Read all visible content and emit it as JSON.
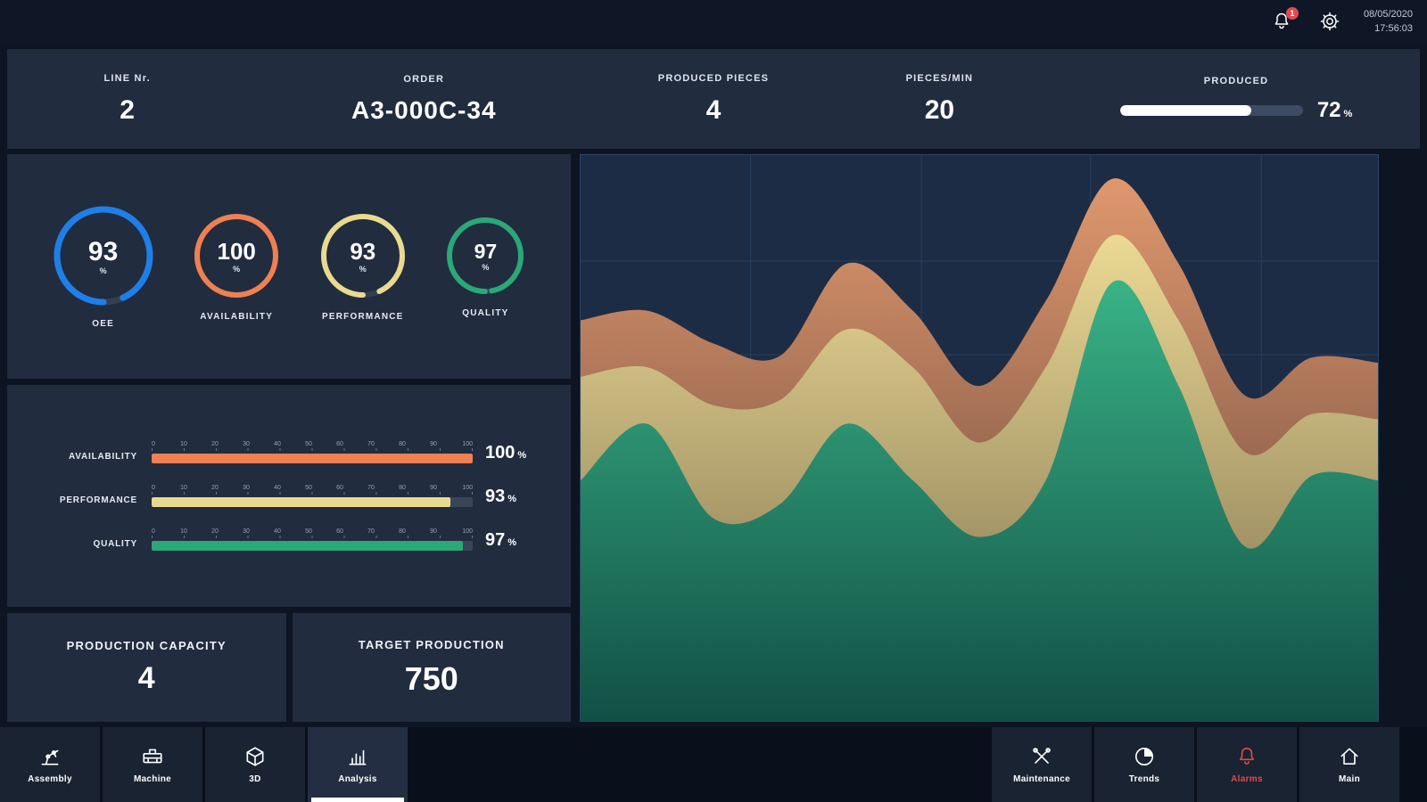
{
  "topbar": {
    "date": "08/05/2020",
    "time": "17:56:03",
    "notification_count": "1"
  },
  "header": {
    "line": {
      "label": "LINE Nr.",
      "value": "2"
    },
    "order": {
      "label": "ORDER",
      "value": "A3-000C-34"
    },
    "produced_pieces": {
      "label": "PRODUCED PIECES",
      "value": "4"
    },
    "pieces_min": {
      "label": "PIECES/MIN",
      "value": "20"
    },
    "produced": {
      "label": "PRODUCED",
      "value": "72",
      "unit": "%",
      "percent": 72,
      "bar_color": "#ffffff"
    }
  },
  "gauges": {
    "items": [
      {
        "label": "OEE",
        "value": 93,
        "unit": "%",
        "color": "#1f7fe8"
      },
      {
        "label": "AVAILABILITY",
        "value": 100,
        "unit": "%",
        "color": "#ee8052"
      },
      {
        "label": "PERFORMANCE",
        "value": 93,
        "unit": "%",
        "color": "#e9da8f"
      },
      {
        "label": "QUALITY",
        "value": 97,
        "unit": "%",
        "color": "#2aa876"
      }
    ]
  },
  "bars": {
    "scale": {
      "min": 0,
      "max": 100,
      "step": 10
    },
    "items": [
      {
        "label": "AVAILABILITY",
        "value": 100,
        "display": "100",
        "unit": "%",
        "color": "#ee8052"
      },
      {
        "label": "PERFORMANCE",
        "value": 93,
        "display": "93",
        "unit": "%",
        "color": "#e9da8f"
      },
      {
        "label": "QUALITY",
        "value": 97,
        "display": "97",
        "unit": "%",
        "color": "#2aa876"
      }
    ]
  },
  "production": {
    "capacity": {
      "label": "PRODUCTION CAPACITY",
      "value": "4"
    },
    "target": {
      "label": "TARGET PRODUCTION",
      "value": "750"
    }
  },
  "nav": {
    "active": "Analysis",
    "alarm_color": "#e5484d",
    "items": [
      {
        "label": "Assembly",
        "icon": "assembly-icon"
      },
      {
        "label": "Machine",
        "icon": "machine-icon"
      },
      {
        "label": "3D",
        "icon": "cube-icon"
      },
      {
        "label": "Analysis",
        "icon": "analysis-icon"
      },
      {
        "label": "Maintenance",
        "icon": "tools-icon"
      },
      {
        "label": "Trends",
        "icon": "trends-icon"
      },
      {
        "label": "Alarms",
        "icon": "bell-icon"
      },
      {
        "label": "Main",
        "icon": "home-icon"
      }
    ]
  },
  "chart_data": {
    "type": "area",
    "title": "",
    "ylim": [
      0,
      100
    ],
    "values_unit": "percent_of_chart_height_stacked_top_edges",
    "background": "#1d2c45",
    "grid": true,
    "grid_color": "#2e4d70",
    "series": [
      {
        "name": "availability",
        "color": "#e09468",
        "gradient": [
          "#e59b6e",
          "#5e4038"
        ],
        "values": [
          70.8,
          72.5,
          66.7,
          64.5,
          80.8,
          72.5,
          59.2,
          74.2,
          95.8,
          80.8,
          57.5,
          64.2,
          63.3
        ]
      },
      {
        "name": "performance",
        "color": "#e7d78f",
        "gradient": [
          "#ecdc96",
          "#7b6d4c"
        ],
        "values": [
          60.8,
          62.5,
          55.8,
          56.7,
          69.2,
          62.5,
          49.2,
          62.5,
          85.8,
          70.8,
          47.5,
          54.2,
          53.3
        ]
      },
      {
        "name": "quality",
        "color": "#33b184",
        "gradient": [
          "#34b286",
          "#0e4f45"
        ],
        "values": [
          42.5,
          52.5,
          35.8,
          38.3,
          52.5,
          42.5,
          32.5,
          42.5,
          77.5,
          59.2,
          30.8,
          43.3,
          42.5
        ]
      }
    ]
  }
}
